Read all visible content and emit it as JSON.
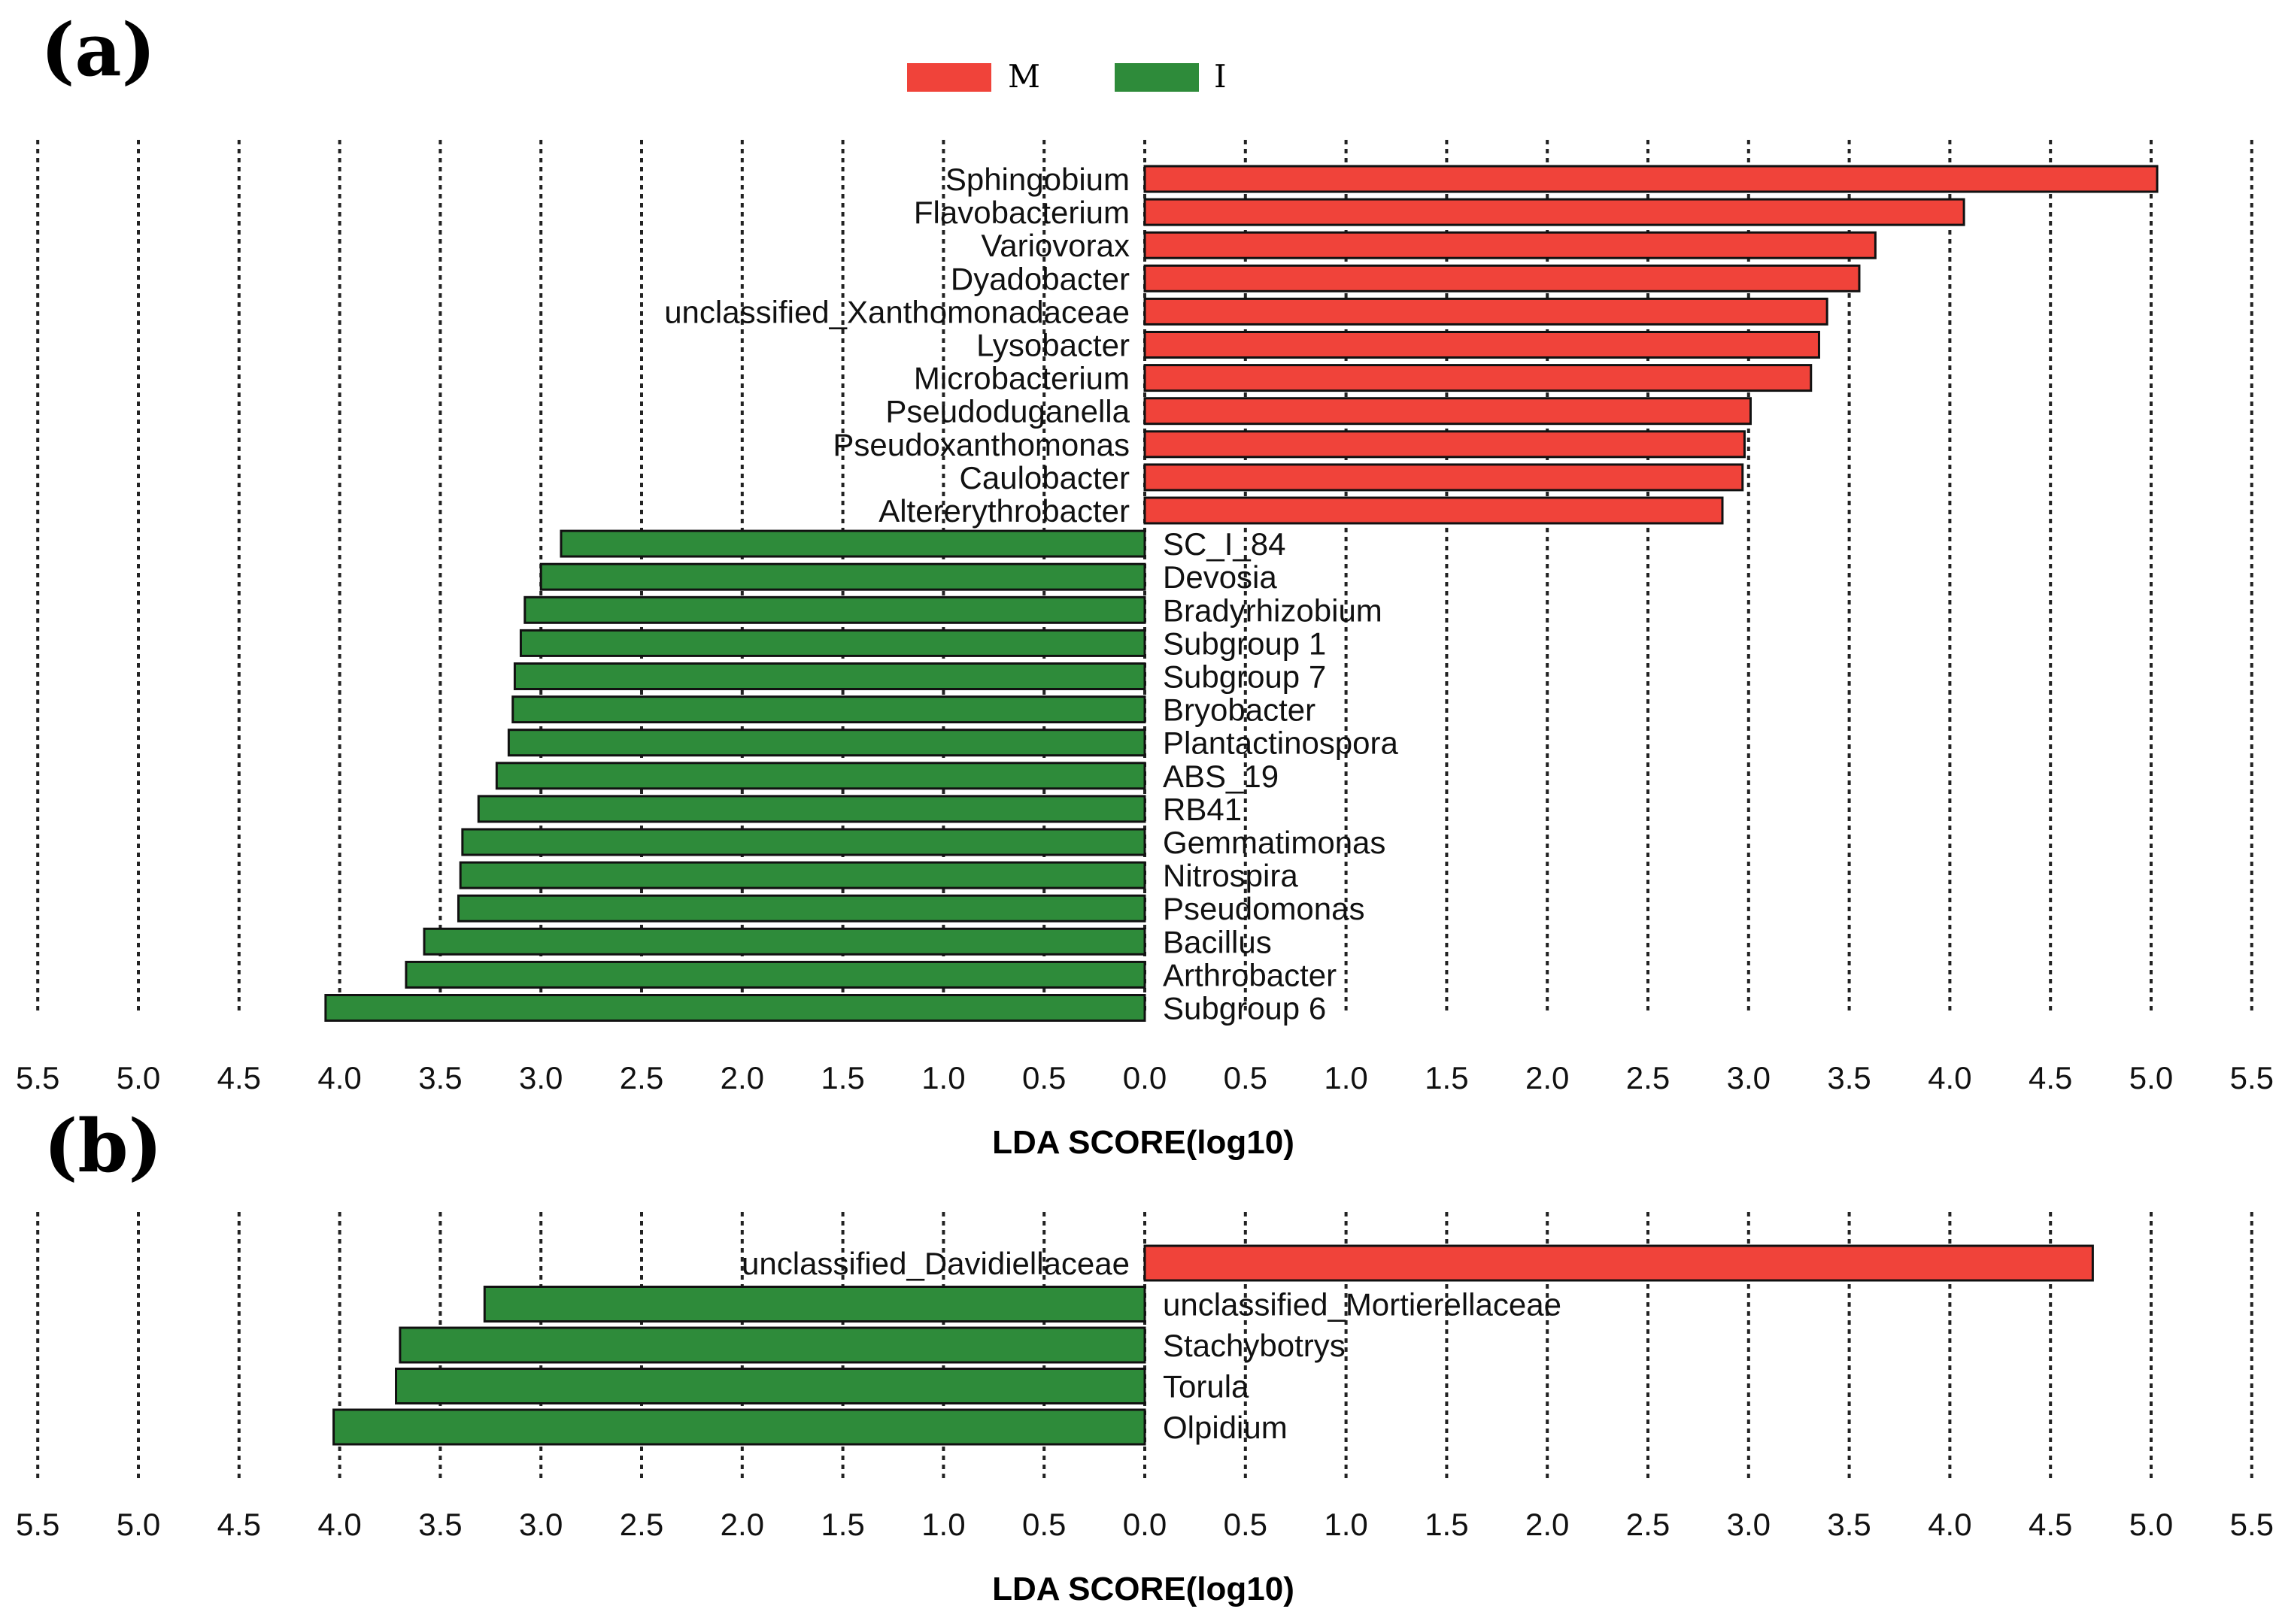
{
  "legend": [
    {
      "label": "M",
      "color": "#f0433a"
    },
    {
      "label": "I",
      "color": "#2e8b3a"
    }
  ],
  "chart_data": [
    {
      "panel_label": "(a)",
      "type": "bar",
      "orientation": "horizontal-diverging",
      "xlabel": "LDA SCORE(log10)",
      "xlim": [
        -5.5,
        5.5
      ],
      "ticks": [
        "5.5",
        "5.0",
        "4.5",
        "4.0",
        "3.5",
        "3.0",
        "2.5",
        "2.0",
        "1.5",
        "1.0",
        "0.5",
        "0.0",
        "0.5",
        "1.0",
        "1.5",
        "2.0",
        "2.5",
        "3.0",
        "3.5",
        "4.0",
        "4.5",
        "5.0",
        "5.5"
      ],
      "series": [
        {
          "name": "M",
          "color": "#f0433a",
          "categories": [
            "Sphingobium",
            "Flavobacterium",
            "Variovorax",
            "Dyadobacter",
            "unclassified_Xanthomonadaceae",
            "Lysobacter",
            "Microbacterium",
            "Pseudoduganella",
            "Pseudoxanthomonas",
            "Caulobacter",
            "Altererythrobacter"
          ],
          "values": [
            5.03,
            4.07,
            3.63,
            3.55,
            3.39,
            3.35,
            3.31,
            3.01,
            2.98,
            2.97,
            2.87
          ]
        },
        {
          "name": "I",
          "color": "#2e8b3a",
          "categories": [
            "SC_I_84",
            "Devosia",
            "Bradyrhizobium",
            "Subgroup 1",
            "Subgroup 7",
            "Bryobacter",
            "Plantactinospora",
            "ABS_19",
            "RB41",
            "Gemmatimonas",
            "Nitrospira",
            "Pseudomonas",
            "Bacillus",
            "Arthrobacter",
            "Subgroup 6"
          ],
          "values": [
            2.9,
            3.0,
            3.08,
            3.1,
            3.13,
            3.14,
            3.16,
            3.22,
            3.31,
            3.39,
            3.4,
            3.41,
            3.58,
            3.67,
            4.07
          ]
        }
      ]
    },
    {
      "panel_label": "(b)",
      "type": "bar",
      "orientation": "horizontal-diverging",
      "xlabel": "LDA SCORE(log10)",
      "xlim": [
        -5.5,
        5.5
      ],
      "ticks": [
        "5.5",
        "5.0",
        "4.5",
        "4.0",
        "3.5",
        "3.0",
        "2.5",
        "2.0",
        "1.5",
        "1.0",
        "0.5",
        "0.0",
        "0.5",
        "1.0",
        "1.5",
        "2.0",
        "2.5",
        "3.0",
        "3.5",
        "4.0",
        "4.5",
        "5.0",
        "5.5"
      ],
      "series": [
        {
          "name": "M",
          "color": "#f0433a",
          "categories": [
            "unclassified_Davidiellaceae"
          ],
          "values": [
            4.71
          ]
        },
        {
          "name": "I",
          "color": "#2e8b3a",
          "categories": [
            "unclassified_Mortierellaceae",
            "Stachybotrys",
            "Torula",
            "Olpidium"
          ],
          "values": [
            3.28,
            3.7,
            3.72,
            4.03
          ]
        }
      ]
    }
  ]
}
